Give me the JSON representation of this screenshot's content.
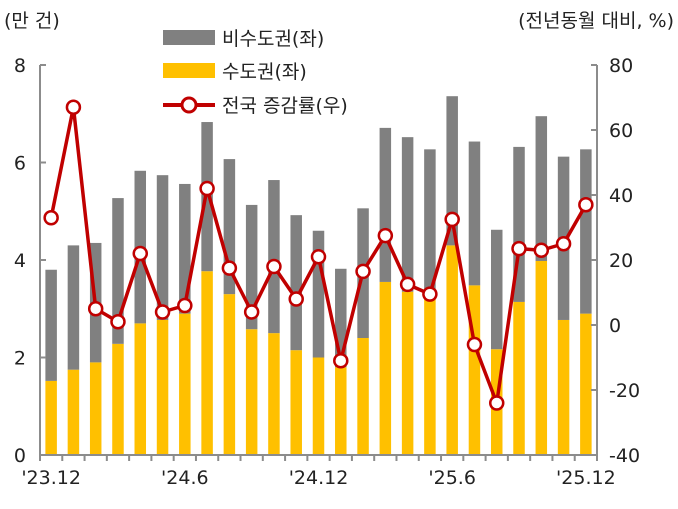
{
  "chart_data": {
    "type": "bar+line",
    "left_unit_label": "(만 건)",
    "right_unit_label": "(전년동월 대비, %)",
    "categories": [
      "23.12",
      "24.1",
      "24.2",
      "24.3",
      "24.4",
      "24.5",
      "24.6",
      "24.7",
      "24.8",
      "24.9",
      "24.10",
      "24.11",
      "24.12",
      "25.1",
      "25.2",
      "25.3",
      "25.4",
      "25.5",
      "25.6",
      "25.7",
      "25.8",
      "25.9",
      "25.10",
      "25.11",
      "25.12"
    ],
    "x_tick_labels": [
      {
        "index": 0,
        "label": "'23.12"
      },
      {
        "index": 6,
        "label": "'24.6"
      },
      {
        "index": 12,
        "label": "'24.12"
      },
      {
        "index": 18,
        "label": "'25.6"
      },
      {
        "index": 24,
        "label": "'25.12"
      }
    ],
    "left_axis": {
      "min": 0,
      "max": 8,
      "ticks": [
        0,
        2,
        4,
        6,
        8
      ]
    },
    "right_axis": {
      "min": -40,
      "max": 80,
      "ticks": [
        -40,
        -20,
        0,
        20,
        40,
        60,
        80
      ]
    },
    "series": [
      {
        "name": "수도권(좌)",
        "type": "stacked-bar",
        "axis": "left",
        "color": "#FFC000",
        "values": [
          1.52,
          1.75,
          1.9,
          2.28,
          2.7,
          2.77,
          2.9,
          3.77,
          3.3,
          2.58,
          2.5,
          2.15,
          2.0,
          1.8,
          2.4,
          3.55,
          3.35,
          3.2,
          4.3,
          3.48,
          2.17,
          3.14,
          3.98,
          2.77,
          2.9
        ]
      },
      {
        "name": "비수도권(좌)",
        "type": "stacked-bar",
        "axis": "left",
        "color": "#808080",
        "values": [
          2.28,
          2.55,
          2.45,
          2.99,
          3.13,
          2.97,
          2.66,
          3.06,
          2.77,
          2.55,
          3.14,
          2.77,
          2.6,
          2.02,
          2.66,
          3.16,
          3.17,
          3.07,
          3.06,
          2.95,
          2.45,
          3.18,
          2.97,
          3.35,
          3.37
        ]
      },
      {
        "name": "전국 증감률(우)",
        "type": "line",
        "axis": "right",
        "color": "#C00000",
        "values": [
          33,
          67,
          5,
          1,
          22,
          4,
          6,
          42,
          17.5,
          4,
          18,
          8,
          21,
          -11,
          16.5,
          27.5,
          12.5,
          9.5,
          32.5,
          -6,
          -24,
          23.5,
          23,
          25,
          37
        ]
      }
    ],
    "grid": false,
    "legend": "top-center"
  }
}
